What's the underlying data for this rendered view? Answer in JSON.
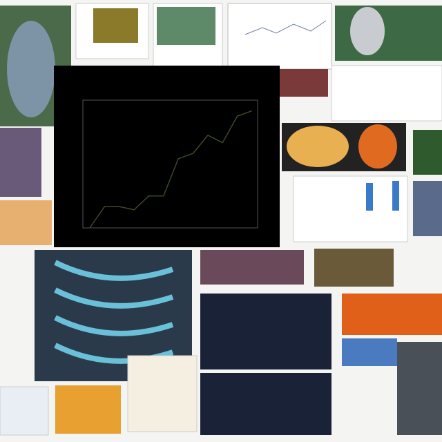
{
  "chart_data": {
    "type": "line",
    "categories": [
      null,
      null,
      null,
      null,
      null,
      null,
      null,
      null,
      null,
      null,
      null,
      null
    ],
    "values": [
      0,
      2,
      2,
      1.7,
      3,
      3,
      6.5,
      7,
      8.7,
      8,
      10.5,
      11
    ],
    "color": "#3a4a2a",
    "ylim": [
      0,
      12
    ]
  }
}
